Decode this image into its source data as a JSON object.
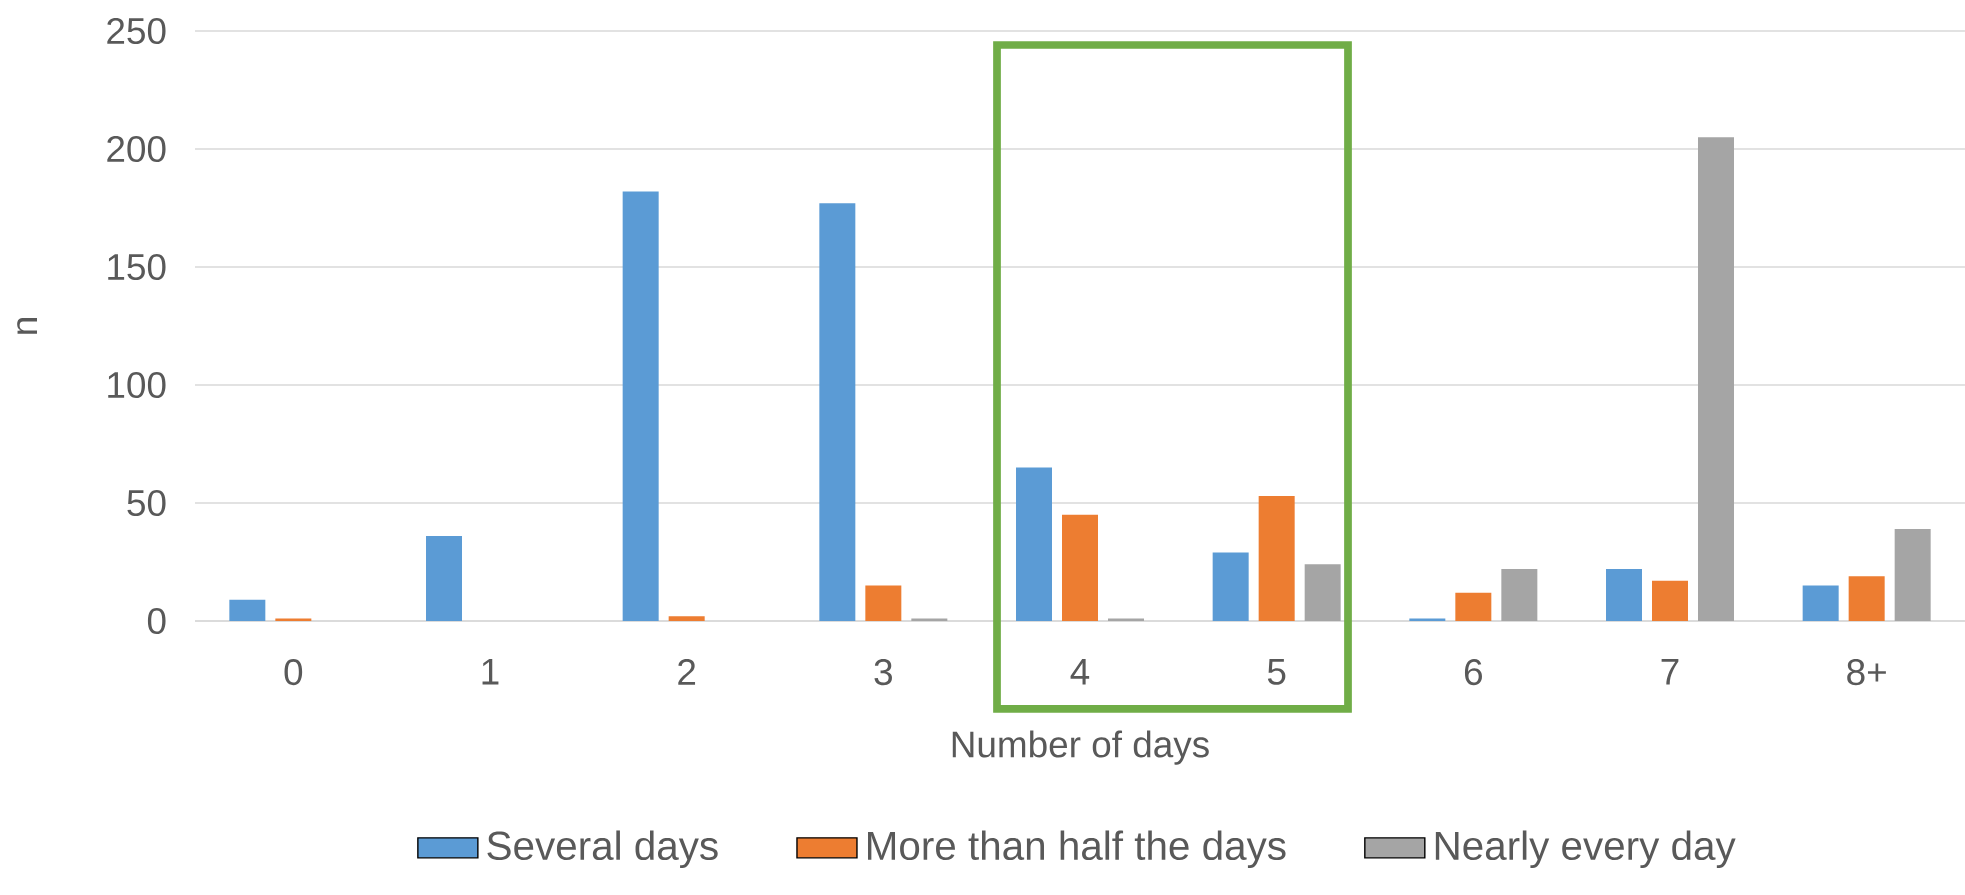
{
  "chart_data": {
    "type": "bar",
    "xlabel": "Number of days",
    "ylabel": "n",
    "categories": [
      "0",
      "1",
      "2",
      "3",
      "4",
      "5",
      "6",
      "7",
      "8+"
    ],
    "series": [
      {
        "name": "Several days",
        "color": "#5b9bd5",
        "values": [
          9,
          36,
          182,
          177,
          65,
          29,
          1,
          22,
          15
        ]
      },
      {
        "name": "More than half the days",
        "color": "#ed7d31",
        "values": [
          1,
          0,
          2,
          15,
          45,
          53,
          12,
          17,
          19
        ]
      },
      {
        "name": "Nearly every day",
        "color": "#a5a5a5",
        "values": [
          0,
          0,
          0,
          1,
          1,
          24,
          22,
          205,
          39
        ]
      }
    ],
    "ylim": [
      0,
      250
    ],
    "yticks": [
      0,
      50,
      100,
      150,
      200,
      250
    ],
    "grid": "y",
    "legend": "bottom"
  }
}
